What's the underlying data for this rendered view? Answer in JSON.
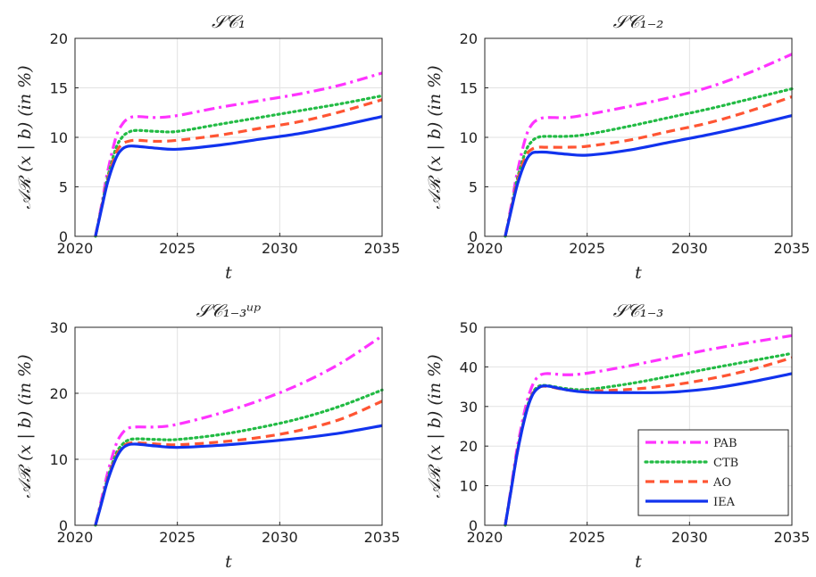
{
  "chart_data": [
    {
      "type": "line",
      "title": "𝒮𝒞₁",
      "xlabel": "t",
      "ylabel": "𝒜ℛ (x | b) (in %)",
      "xlim": [
        2020,
        2035
      ],
      "ylim": [
        0,
        20
      ],
      "xticks": [
        "2020",
        "2025",
        "2030",
        "2035"
      ],
      "yticks": [
        "0",
        "5",
        "10",
        "15",
        "20"
      ],
      "grid": true,
      "series": [
        {
          "name": "PAB",
          "color": "#ff33ff",
          "dash": "dashdot",
          "x": [
            2021,
            2021.3,
            2021.6,
            2022,
            2022.3,
            2022.6,
            2023,
            2024,
            2025,
            2027,
            2029,
            2031,
            2033,
            2035
          ],
          "y": [
            0,
            3.2,
            6.6,
            10.0,
            11.3,
            11.9,
            12.1,
            12.0,
            12.2,
            13.0,
            13.7,
            14.4,
            15.3,
            16.5
          ]
        },
        {
          "name": "CTB",
          "color": "#22bb44",
          "dash": "dotted",
          "x": [
            2021,
            2021.3,
            2021.6,
            2022,
            2022.3,
            2022.6,
            2023,
            2024,
            2025,
            2027,
            2029,
            2031,
            2033,
            2035
          ],
          "y": [
            0,
            3.0,
            6.0,
            8.9,
            10.0,
            10.5,
            10.7,
            10.6,
            10.6,
            11.3,
            12.0,
            12.7,
            13.4,
            14.2
          ]
        },
        {
          "name": "AO",
          "color": "#ff5533",
          "dash": "dashed",
          "x": [
            2021,
            2021.3,
            2021.6,
            2022,
            2022.3,
            2022.6,
            2023,
            2024,
            2025,
            2027,
            2029,
            2031,
            2033,
            2035
          ],
          "y": [
            0,
            2.9,
            5.7,
            8.4,
            9.3,
            9.6,
            9.7,
            9.6,
            9.7,
            10.2,
            10.9,
            11.6,
            12.6,
            13.8
          ]
        },
        {
          "name": "IEA",
          "color": "#1133ee",
          "dash": "solid",
          "x": [
            2021,
            2021.3,
            2021.6,
            2022,
            2022.3,
            2022.6,
            2023,
            2024,
            2025,
            2027,
            2029,
            2031,
            2033,
            2035
          ],
          "y": [
            0,
            2.8,
            5.5,
            7.9,
            8.8,
            9.1,
            9.1,
            8.9,
            8.8,
            9.2,
            9.8,
            10.4,
            11.2,
            12.1
          ]
        }
      ]
    },
    {
      "type": "line",
      "title": "𝒮𝒞₁₋₂",
      "xlabel": "t",
      "ylabel": "𝒜ℛ (x | b) (in %)",
      "xlim": [
        2020,
        2035
      ],
      "ylim": [
        0,
        20
      ],
      "xticks": [
        "2020",
        "2025",
        "2030",
        "2035"
      ],
      "yticks": [
        "0",
        "5",
        "10",
        "15",
        "20"
      ],
      "grid": true,
      "series": [
        {
          "name": "PAB",
          "color": "#ff33ff",
          "dash": "dashdot",
          "x": [
            2021,
            2021.3,
            2021.6,
            2022,
            2022.3,
            2022.6,
            2023,
            2024,
            2025,
            2027,
            2029,
            2031,
            2033,
            2035
          ],
          "y": [
            0,
            3.2,
            6.6,
            10.0,
            11.3,
            11.8,
            12.0,
            12.0,
            12.3,
            13.1,
            14.0,
            15.1,
            16.6,
            18.4
          ]
        },
        {
          "name": "CTB",
          "color": "#22bb44",
          "dash": "dotted",
          "x": [
            2021,
            2021.3,
            2021.6,
            2022,
            2022.3,
            2022.6,
            2023,
            2024,
            2025,
            2027,
            2029,
            2031,
            2033,
            2035
          ],
          "y": [
            0,
            2.9,
            5.9,
            8.6,
            9.6,
            10.0,
            10.1,
            10.1,
            10.3,
            11.1,
            12.0,
            12.9,
            13.9,
            14.9
          ]
        },
        {
          "name": "AO",
          "color": "#ff5533",
          "dash": "dashed",
          "x": [
            2021,
            2021.3,
            2021.6,
            2022,
            2022.3,
            2022.6,
            2023,
            2024,
            2025,
            2027,
            2029,
            2031,
            2033,
            2035
          ],
          "y": [
            0,
            2.8,
            5.6,
            8.1,
            8.8,
            9.0,
            9.0,
            9.0,
            9.1,
            9.7,
            10.6,
            11.5,
            12.7,
            14.1
          ]
        },
        {
          "name": "IEA",
          "color": "#1133ee",
          "dash": "solid",
          "x": [
            2021,
            2021.3,
            2021.6,
            2022,
            2022.3,
            2022.6,
            2023,
            2024,
            2025,
            2027,
            2029,
            2031,
            2033,
            2035
          ],
          "y": [
            0,
            2.7,
            5.3,
            7.6,
            8.4,
            8.5,
            8.5,
            8.3,
            8.2,
            8.7,
            9.5,
            10.3,
            11.2,
            12.2
          ]
        }
      ]
    },
    {
      "type": "line",
      "title": "𝒮𝒞₁₋₃ᵘᵖ",
      "xlabel": "t",
      "ylabel": "𝒜ℛ (x | b) (in %)",
      "xlim": [
        2020,
        2035
      ],
      "ylim": [
        0,
        30
      ],
      "xticks": [
        "2020",
        "2025",
        "2030",
        "2035"
      ],
      "yticks": [
        "0",
        "10",
        "20",
        "30"
      ],
      "grid": true,
      "series": [
        {
          "name": "PAB",
          "color": "#ff33ff",
          "dash": "dashdot",
          "x": [
            2021,
            2021.3,
            2021.6,
            2022,
            2022.3,
            2022.6,
            2023,
            2024,
            2025,
            2027,
            2029,
            2031,
            2033,
            2035
          ],
          "y": [
            0,
            4.0,
            8.0,
            12.2,
            13.9,
            14.7,
            14.9,
            14.9,
            15.3,
            16.9,
            18.9,
            21.4,
            24.6,
            28.7
          ]
        },
        {
          "name": "CTB",
          "color": "#22bb44",
          "dash": "dotted",
          "x": [
            2021,
            2021.3,
            2021.6,
            2022,
            2022.3,
            2022.6,
            2023,
            2024,
            2025,
            2027,
            2029,
            2031,
            2033,
            2035
          ],
          "y": [
            0,
            3.6,
            7.2,
            10.8,
            12.2,
            12.9,
            13.1,
            13.0,
            13.0,
            13.7,
            14.8,
            16.2,
            18.1,
            20.5
          ]
        },
        {
          "name": "AO",
          "color": "#ff5533",
          "dash": "dashed",
          "x": [
            2021,
            2021.3,
            2021.6,
            2022,
            2022.3,
            2022.6,
            2023,
            2024,
            2025,
            2027,
            2029,
            2031,
            2033,
            2035
          ],
          "y": [
            0,
            3.5,
            7.0,
            10.4,
            11.8,
            12.4,
            12.5,
            12.3,
            12.2,
            12.6,
            13.3,
            14.4,
            16.1,
            18.8
          ]
        },
        {
          "name": "IEA",
          "color": "#1133ee",
          "dash": "solid",
          "x": [
            2021,
            2021.3,
            2021.6,
            2022,
            2022.3,
            2022.6,
            2023,
            2024,
            2025,
            2027,
            2029,
            2031,
            2033,
            2035
          ],
          "y": [
            0,
            3.4,
            6.8,
            10.1,
            11.6,
            12.2,
            12.3,
            12.0,
            11.8,
            12.1,
            12.6,
            13.2,
            14.0,
            15.1
          ]
        }
      ]
    },
    {
      "type": "line",
      "title": "𝒮𝒞₁₋₃",
      "xlabel": "t",
      "ylabel": "𝒜ℛ (x | b) (in %)",
      "xlim": [
        2020,
        2035
      ],
      "ylim": [
        0,
        50
      ],
      "xticks": [
        "2020",
        "2025",
        "2030",
        "2035"
      ],
      "yticks": [
        "0",
        "10",
        "20",
        "30",
        "40",
        "50"
      ],
      "grid": true,
      "legend_position": "bottom-right",
      "series": [
        {
          "name": "PAB",
          "color": "#ff33ff",
          "dash": "dashdot",
          "x": [
            2021,
            2021.3,
            2021.6,
            2022,
            2022.3,
            2022.6,
            2023,
            2024,
            2025,
            2027,
            2029,
            2031,
            2033,
            2035
          ],
          "y": [
            0,
            10.0,
            20.0,
            30.0,
            35.0,
            37.5,
            38.3,
            38.0,
            38.4,
            40.2,
            42.3,
            44.4,
            46.2,
            47.9
          ]
        },
        {
          "name": "CTB",
          "color": "#22bb44",
          "dash": "dotted",
          "x": [
            2021,
            2021.3,
            2021.6,
            2022,
            2022.3,
            2022.6,
            2023,
            2024,
            2025,
            2027,
            2029,
            2031,
            2033,
            2035
          ],
          "y": [
            0,
            9.5,
            19.0,
            28.5,
            33.0,
            35.0,
            35.3,
            34.5,
            34.3,
            35.7,
            37.6,
            39.6,
            41.5,
            43.4
          ]
        },
        {
          "name": "AO",
          "color": "#ff5533",
          "dash": "dashed",
          "x": [
            2021,
            2021.3,
            2021.6,
            2022,
            2022.3,
            2022.6,
            2023,
            2024,
            2025,
            2027,
            2029,
            2031,
            2033,
            2035
          ],
          "y": [
            0,
            9.4,
            18.8,
            28.2,
            32.8,
            34.7,
            35.1,
            34.2,
            33.9,
            34.3,
            35.3,
            37.0,
            39.3,
            42.3
          ]
        },
        {
          "name": "IEA",
          "color": "#1133ee",
          "dash": "solid",
          "x": [
            2021,
            2021.3,
            2021.6,
            2022,
            2022.3,
            2022.6,
            2023,
            2024,
            2025,
            2027,
            2029,
            2031,
            2033,
            2035
          ],
          "y": [
            0,
            9.3,
            18.6,
            28.0,
            32.6,
            34.6,
            35.2,
            34.2,
            33.6,
            33.5,
            33.6,
            34.5,
            36.2,
            38.3
          ]
        }
      ]
    }
  ]
}
